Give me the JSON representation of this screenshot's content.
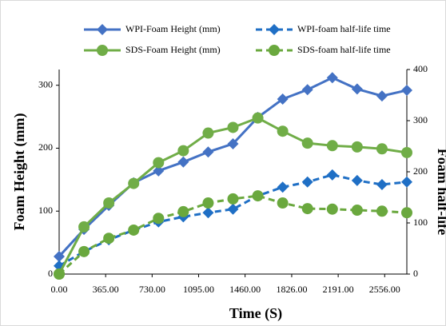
{
  "chart_data": {
    "type": "line",
    "x_label": "Time (S)",
    "y_label": "Foam Height (mm)",
    "y2_label": "Foam half-life",
    "x": [
      0,
      195,
      390,
      585,
      780,
      975,
      1170,
      1365,
      1560,
      1755,
      1950,
      2145,
      2340,
      2535,
      2730
    ],
    "xlim": [
      0,
      2730
    ],
    "xticks": [
      {
        "value": 0,
        "label": "0.00"
      },
      {
        "value": 365,
        "label": "365.00"
      },
      {
        "value": 730,
        "label": "730.00"
      },
      {
        "value": 1095,
        "label": "1095.00"
      },
      {
        "value": 1460,
        "label": "1460.00"
      },
      {
        "value": 1826,
        "label": "1826.00"
      },
      {
        "value": 2191,
        "label": "2191.00"
      },
      {
        "value": 2556,
        "label": "2556.00"
      }
    ],
    "ylim": [
      0,
      325
    ],
    "yticks": [
      0,
      100,
      200,
      300
    ],
    "y2lim": [
      0,
      400
    ],
    "y2ticks": [
      0,
      100,
      200,
      300,
      400
    ],
    "series": [
      {
        "name": "WPI-Foam Height (mm)",
        "color": "#4472c4",
        "marker": "diamond",
        "dashed": false,
        "values": [
          28,
          71,
          109,
          145,
          164,
          178,
          194,
          207,
          249,
          278,
          293,
          312,
          294,
          283,
          292
        ]
      },
      {
        "name": "WPI-foam half-life time",
        "color": "#1f6fc5",
        "marker": "diamond",
        "dashed": true,
        "axis": "y2",
        "values": [
          16,
          44,
          67,
          86,
          102,
          112,
          120,
          127,
          153,
          170,
          180,
          194,
          183,
          175,
          180
        ]
      },
      {
        "name": "SDS-Foam Height (mm)",
        "color": "#70ad47",
        "marker": "circle",
        "dashed": false,
        "values": [
          0,
          75,
          113,
          144,
          177,
          196,
          224,
          233,
          248,
          227,
          208,
          204,
          202,
          199,
          193
        ]
      },
      {
        "name": "SDS-foam half-life time",
        "color": "#6aa83e",
        "marker": "circle",
        "dashed": true,
        "axis": "y2",
        "values": [
          0,
          44,
          70,
          86,
          109,
          122,
          139,
          147,
          153,
          139,
          128,
          127,
          125,
          123,
          120
        ]
      }
    ]
  }
}
